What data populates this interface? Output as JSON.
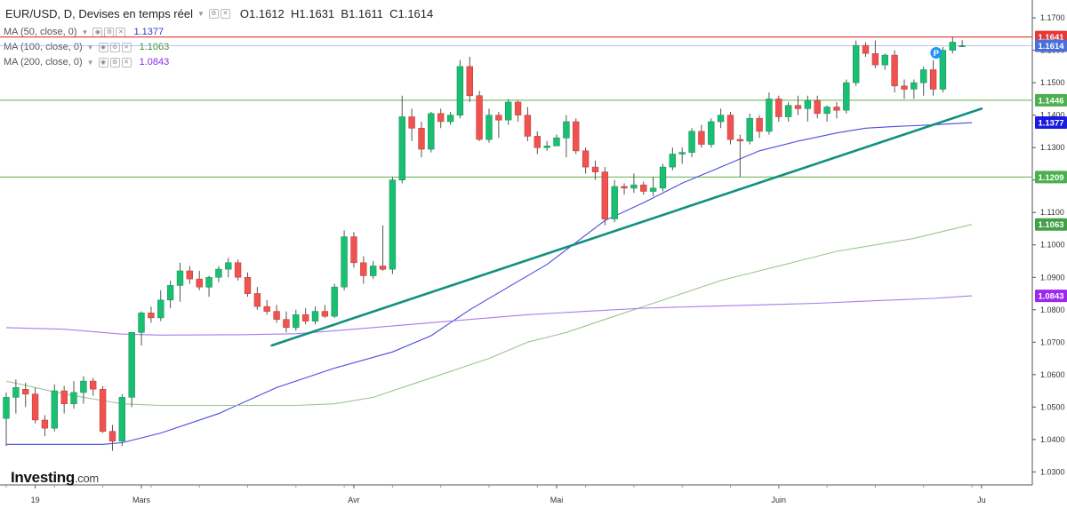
{
  "header": {
    "symbol": "EUR/USD, D, Devises en temps réel",
    "ohlc": [
      {
        "label": "O",
        "value": "1.1612"
      },
      {
        "label": "H",
        "value": "1.1631"
      },
      {
        "label": "B",
        "value": "1.1611"
      },
      {
        "label": "C",
        "value": "1.1614"
      }
    ]
  },
  "indicators": [
    {
      "label": "MA (50, close, 0)",
      "value": "1.1377",
      "color": "#3b3bd6"
    },
    {
      "label": "MA (100, close, 0)",
      "value": "1.1063",
      "color": "#3f8f2e"
    },
    {
      "label": "MA (200, close, 0)",
      "value": "1.0843",
      "color": "#8a2be2"
    }
  ],
  "branding": {
    "logo": "Investing",
    "domain": ".com"
  },
  "marker": {
    "label": "P",
    "color": "#2196f3"
  },
  "chart_data": {
    "type": "candlestick",
    "y_ticks": [
      "1.0300",
      "1.0400",
      "1.0500",
      "1.0600",
      "1.0700",
      "1.0800",
      "1.0900",
      "1.1000",
      "1.1100",
      "1.1200",
      "1.1300",
      "1.1400",
      "1.1500",
      "1.1600",
      "1.1700"
    ],
    "ylim": [
      1.026,
      1.1755
    ],
    "x_ticks": [
      {
        "label": "19",
        "index": 3
      },
      {
        "label": "Mars",
        "index": 14
      },
      {
        "label": "Avr",
        "index": 36
      },
      {
        "label": "Mai",
        "index": 57
      },
      {
        "label": "Juin",
        "index": 80
      },
      {
        "label": "Ju",
        "index": 101
      }
    ],
    "candles": [
      [
        1.0465,
        1.0545,
        1.038,
        1.053
      ],
      [
        1.053,
        1.0585,
        1.048,
        1.056
      ],
      [
        1.0555,
        1.0575,
        1.05,
        1.054
      ],
      [
        1.054,
        1.056,
        1.045,
        1.046
      ],
      [
        1.046,
        1.0475,
        1.041,
        1.0435
      ],
      [
        1.0435,
        1.057,
        1.0425,
        1.055
      ],
      [
        1.055,
        1.0565,
        1.048,
        1.051
      ],
      [
        1.051,
        1.058,
        1.0495,
        1.0545
      ],
      [
        1.0545,
        1.0595,
        1.051,
        1.058
      ],
      [
        1.058,
        1.059,
        1.0535,
        1.0555
      ],
      [
        1.0555,
        1.0565,
        1.042,
        1.0425
      ],
      [
        1.0425,
        1.0445,
        1.0365,
        1.0395
      ],
      [
        1.0395,
        1.054,
        1.038,
        1.053
      ],
      [
        1.053,
        1.073,
        1.05,
        1.073
      ],
      [
        1.073,
        1.0795,
        1.069,
        1.079
      ],
      [
        1.079,
        1.081,
        1.076,
        1.0775
      ],
      [
        1.0775,
        1.086,
        1.0765,
        1.083
      ],
      [
        1.083,
        1.089,
        1.0805,
        1.0875
      ],
      [
        1.0875,
        1.0945,
        1.0825,
        1.092
      ],
      [
        1.092,
        1.0935,
        1.088,
        1.0895
      ],
      [
        1.0895,
        1.092,
        1.086,
        1.087
      ],
      [
        1.087,
        1.0905,
        1.084,
        1.09
      ],
      [
        1.09,
        1.0935,
        1.0885,
        1.0925
      ],
      [
        1.0925,
        1.096,
        1.09,
        1.0945
      ],
      [
        1.0945,
        1.0955,
        1.089,
        1.09
      ],
      [
        1.09,
        1.0915,
        1.084,
        1.085
      ],
      [
        1.085,
        1.087,
        1.08,
        1.081
      ],
      [
        1.081,
        1.083,
        1.0785,
        1.0795
      ],
      [
        1.0795,
        1.0815,
        1.076,
        1.077
      ],
      [
        1.077,
        1.0795,
        1.073,
        1.0745
      ],
      [
        1.0745,
        1.08,
        1.0735,
        1.0785
      ],
      [
        1.0785,
        1.0805,
        1.0755,
        1.0765
      ],
      [
        1.0765,
        1.081,
        1.0755,
        1.0795
      ],
      [
        1.0795,
        1.0815,
        1.0775,
        1.078
      ],
      [
        1.078,
        1.088,
        1.0775,
        1.087
      ],
      [
        1.087,
        1.1045,
        1.086,
        1.1025
      ],
      [
        1.1025,
        1.104,
        1.093,
        1.0945
      ],
      [
        1.0945,
        1.0965,
        1.088,
        1.0905
      ],
      [
        1.0905,
        1.095,
        1.0895,
        1.0935
      ],
      [
        1.0935,
        1.106,
        1.092,
        1.0925
      ],
      [
        1.0925,
        1.121,
        1.091,
        1.12
      ],
      [
        1.12,
        1.146,
        1.119,
        1.1395
      ],
      [
        1.1395,
        1.142,
        1.132,
        1.136
      ],
      [
        1.136,
        1.138,
        1.127,
        1.1295
      ],
      [
        1.1295,
        1.141,
        1.1285,
        1.1405
      ],
      [
        1.1405,
        1.142,
        1.136,
        1.138
      ],
      [
        1.138,
        1.141,
        1.137,
        1.14
      ],
      [
        1.14,
        1.157,
        1.139,
        1.155
      ],
      [
        1.155,
        1.158,
        1.144,
        1.146
      ],
      [
        1.146,
        1.1475,
        1.132,
        1.1325
      ],
      [
        1.1325,
        1.142,
        1.1315,
        1.14
      ],
      [
        1.14,
        1.141,
        1.133,
        1.1385
      ],
      [
        1.1385,
        1.145,
        1.137,
        1.144
      ],
      [
        1.144,
        1.1445,
        1.138,
        1.14
      ],
      [
        1.14,
        1.1425,
        1.132,
        1.1335
      ],
      [
        1.1335,
        1.135,
        1.128,
        1.13
      ],
      [
        1.13,
        1.132,
        1.129,
        1.1305
      ],
      [
        1.1305,
        1.134,
        1.1305,
        1.133
      ],
      [
        1.133,
        1.14,
        1.127,
        1.138
      ],
      [
        1.138,
        1.139,
        1.128,
        1.129
      ],
      [
        1.129,
        1.13,
        1.122,
        1.124
      ],
      [
        1.124,
        1.126,
        1.12,
        1.1225
      ],
      [
        1.1225,
        1.124,
        1.106,
        1.108
      ],
      [
        1.108,
        1.12,
        1.107,
        1.118
      ],
      [
        1.118,
        1.119,
        1.1155,
        1.1175
      ],
      [
        1.1175,
        1.122,
        1.116,
        1.1185
      ],
      [
        1.1185,
        1.1195,
        1.1155,
        1.1165
      ],
      [
        1.1165,
        1.121,
        1.115,
        1.1175
      ],
      [
        1.1175,
        1.125,
        1.1165,
        1.124
      ],
      [
        1.124,
        1.13,
        1.123,
        1.128
      ],
      [
        1.128,
        1.13,
        1.125,
        1.1285
      ],
      [
        1.1285,
        1.136,
        1.127,
        1.135
      ],
      [
        1.135,
        1.137,
        1.13,
        1.131
      ],
      [
        1.131,
        1.139,
        1.13,
        1.138
      ],
      [
        1.138,
        1.142,
        1.136,
        1.14
      ],
      [
        1.14,
        1.141,
        1.131,
        1.1325
      ],
      [
        1.1325,
        1.134,
        1.121,
        1.132
      ],
      [
        1.132,
        1.1405,
        1.131,
        1.139
      ],
      [
        1.139,
        1.14,
        1.133,
        1.135
      ],
      [
        1.135,
        1.147,
        1.134,
        1.145
      ],
      [
        1.145,
        1.146,
        1.138,
        1.1395
      ],
      [
        1.1395,
        1.144,
        1.138,
        1.143
      ],
      [
        1.143,
        1.146,
        1.14,
        1.142
      ],
      [
        1.142,
        1.146,
        1.138,
        1.1445
      ],
      [
        1.1445,
        1.146,
        1.139,
        1.1405
      ],
      [
        1.1405,
        1.143,
        1.138,
        1.1425
      ],
      [
        1.1425,
        1.144,
        1.139,
        1.1415
      ],
      [
        1.1415,
        1.151,
        1.1405,
        1.15
      ],
      [
        1.15,
        1.163,
        1.149,
        1.1615
      ],
      [
        1.1615,
        1.1625,
        1.158,
        1.159
      ],
      [
        1.159,
        1.163,
        1.1545,
        1.1555
      ],
      [
        1.1555,
        1.159,
        1.154,
        1.1585
      ],
      [
        1.1585,
        1.16,
        1.147,
        1.149
      ],
      [
        1.149,
        1.151,
        1.145,
        1.148
      ],
      [
        1.148,
        1.151,
        1.145,
        1.15
      ],
      [
        1.15,
        1.155,
        1.146,
        1.154
      ],
      [
        1.154,
        1.157,
        1.146,
        1.148
      ],
      [
        1.148,
        1.161,
        1.147,
        1.16
      ],
      [
        1.16,
        1.1641,
        1.159,
        1.1625
      ],
      [
        1.1612,
        1.1631,
        1.1611,
        1.1614
      ]
    ],
    "series": [
      {
        "indicator": 0,
        "color": "#4a4ae0",
        "points": [
          [
            0,
            1.0385
          ],
          [
            10,
            1.0385
          ],
          [
            12,
            1.039
          ],
          [
            16,
            1.042
          ],
          [
            22,
            1.048
          ],
          [
            28,
            1.056
          ],
          [
            34,
            1.062
          ],
          [
            40,
            1.067
          ],
          [
            44,
            1.072
          ],
          [
            48,
            1.08
          ],
          [
            52,
            1.087
          ],
          [
            56,
            1.094
          ],
          [
            60,
            1.103
          ],
          [
            62,
            1.1075
          ],
          [
            66,
            1.113
          ],
          [
            70,
            1.119
          ],
          [
            74,
            1.124
          ],
          [
            78,
            1.129
          ],
          [
            82,
            1.132
          ],
          [
            86,
            1.1345
          ],
          [
            89,
            1.136
          ],
          [
            92,
            1.1365
          ],
          [
            96,
            1.137
          ],
          [
            100,
            1.1377
          ]
        ]
      },
      {
        "indicator": 1,
        "color": "#9cc48e",
        "points": [
          [
            0,
            1.058
          ],
          [
            6,
            1.054
          ],
          [
            12,
            1.051
          ],
          [
            16,
            1.0505
          ],
          [
            24,
            1.0505
          ],
          [
            30,
            1.0505
          ],
          [
            34,
            1.051
          ],
          [
            38,
            1.053
          ],
          [
            42,
            1.057
          ],
          [
            46,
            1.061
          ],
          [
            50,
            1.065
          ],
          [
            54,
            1.07
          ],
          [
            58,
            1.073
          ],
          [
            62,
            1.077
          ],
          [
            66,
            1.081
          ],
          [
            70,
            1.085
          ],
          [
            74,
            1.089
          ],
          [
            78,
            1.092
          ],
          [
            82,
            1.095
          ],
          [
            86,
            1.098
          ],
          [
            90,
            1.1
          ],
          [
            94,
            1.102
          ],
          [
            100,
            1.1063
          ]
        ]
      },
      {
        "indicator": 2,
        "color": "#a87bea",
        "points": [
          [
            0,
            1.0745
          ],
          [
            6,
            1.074
          ],
          [
            12,
            1.0725
          ],
          [
            16,
            1.0722
          ],
          [
            24,
            1.0723
          ],
          [
            30,
            1.0726
          ],
          [
            36,
            1.074
          ],
          [
            42,
            1.0755
          ],
          [
            48,
            1.077
          ],
          [
            54,
            1.0785
          ],
          [
            60,
            1.0795
          ],
          [
            66,
            1.0805
          ],
          [
            72,
            1.081
          ],
          [
            78,
            1.0815
          ],
          [
            84,
            1.082
          ],
          [
            90,
            1.0828
          ],
          [
            96,
            1.0835
          ],
          [
            100,
            1.0843
          ]
        ]
      }
    ],
    "horizontal_lines": [
      {
        "value": 1.1641,
        "color": "#e04b4b",
        "label": "1.1641"
      },
      {
        "value": 1.1446,
        "color": "#7fbf6b",
        "label": "1.1446"
      },
      {
        "value": 1.1209,
        "color": "#7fbf6b",
        "label": "1.1209"
      }
    ],
    "price_tags": [
      {
        "value": 1.1641,
        "label": "1.1641",
        "color": "#e53935"
      },
      {
        "value": 1.1614,
        "label": "1.1614",
        "color": "#4a6fd8"
      },
      {
        "value": 1.1446,
        "label": "1.1446",
        "color": "#4caf50"
      },
      {
        "value": 1.1377,
        "label": "1.1377",
        "color": "#1a1ae0"
      },
      {
        "value": 1.1209,
        "label": "1.1209",
        "color": "#4caf50"
      },
      {
        "value": 1.1063,
        "label": "1.1063",
        "color": "#43a047"
      },
      {
        "value": 1.0843,
        "label": "1.0843",
        "color": "#9c27f0"
      }
    ],
    "trendline": {
      "color": "#119080",
      "from": [
        27.5,
        1.069
      ],
      "to": [
        101,
        1.142
      ]
    },
    "colors": {
      "up": "#1bbf72",
      "down": "#ef5350",
      "wick": "#555555"
    },
    "grid": false
  }
}
